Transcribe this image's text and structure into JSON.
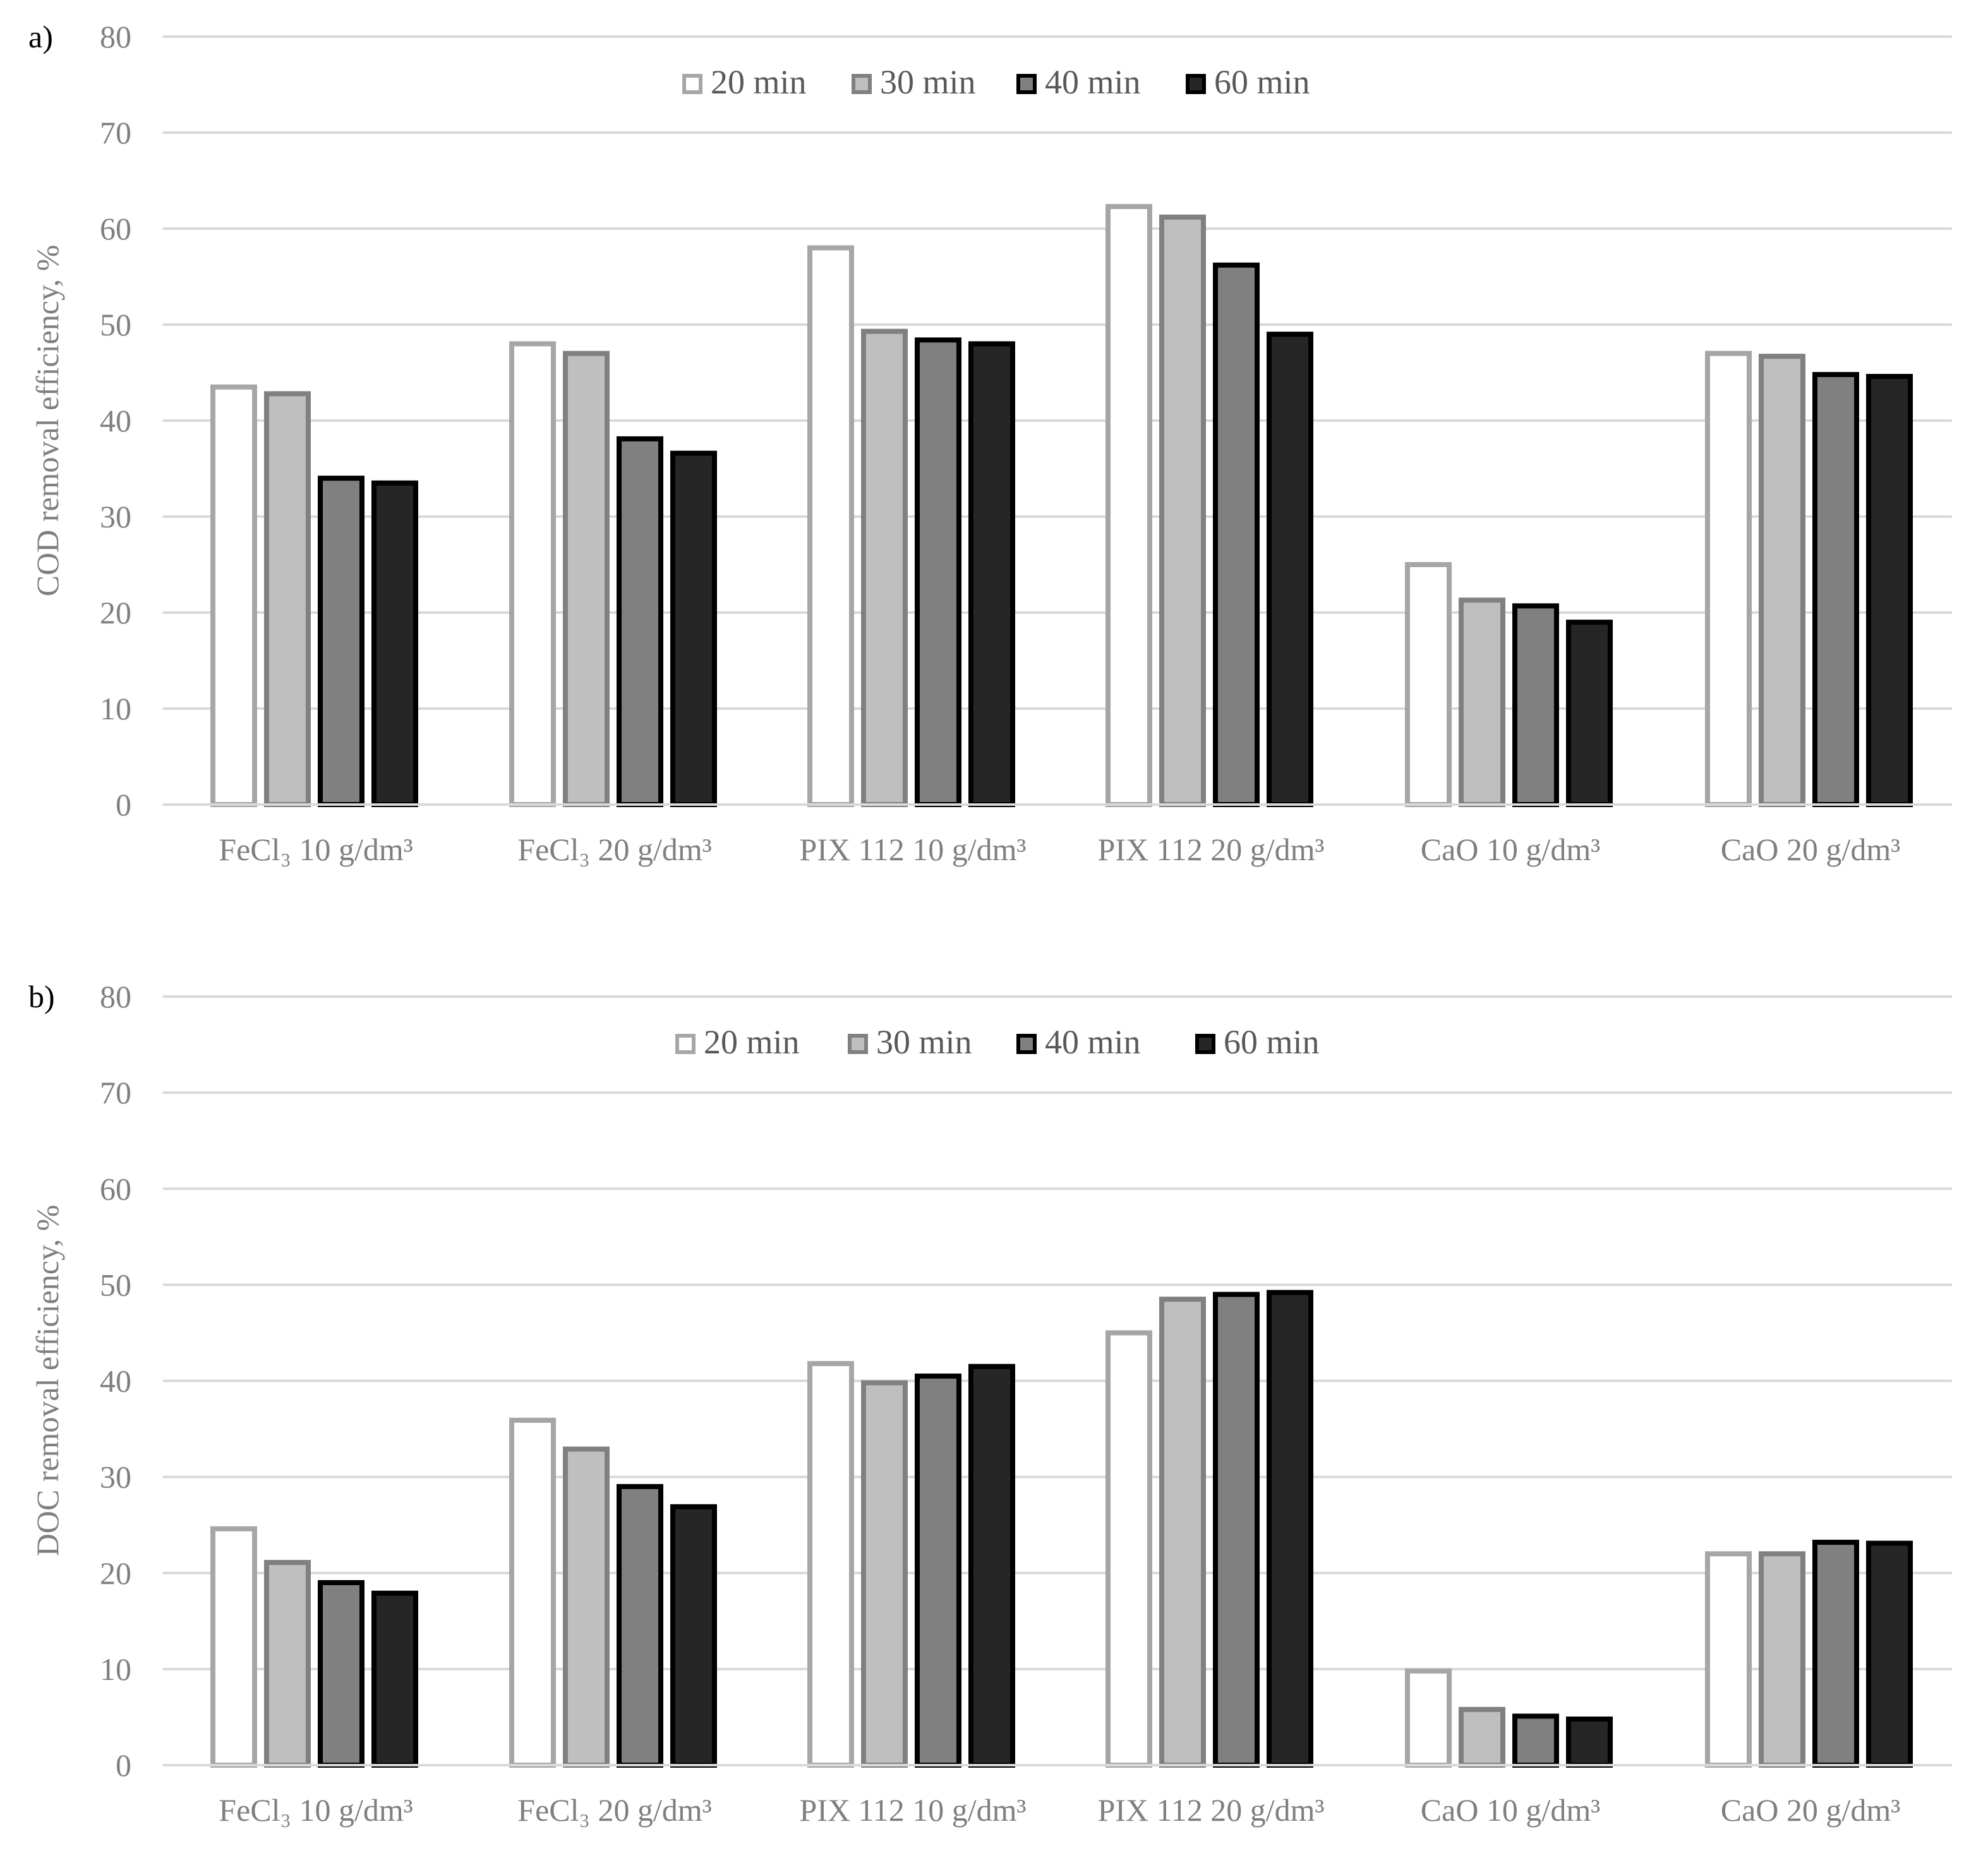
{
  "chart_data": [
    {
      "type": "bar",
      "panel_label": "a)",
      "title": "",
      "xlabel": "",
      "ylabel": "COD removal efficiency, %",
      "ylim": [
        0,
        80
      ],
      "yticks": [
        "0",
        "10",
        "20",
        "30",
        "40",
        "50",
        "60",
        "70",
        "80"
      ],
      "grid": true,
      "legend_position": "top-center",
      "categories": [
        "FeCl₃ 10 g/dm³",
        "FeCl₃ 20 g/dm³",
        "PIX 112 10 g/dm³",
        "PIX 112 20 g/dm³",
        "CaO 10 g/dm³",
        "CaO 20 g/dm³"
      ],
      "series": [
        {
          "name": "20 min",
          "values": [
            43.5,
            48.0,
            58.0,
            62.3,
            25.0,
            47.0
          ]
        },
        {
          "name": "30 min",
          "values": [
            42.8,
            47.0,
            49.3,
            61.2,
            21.3,
            46.7
          ]
        },
        {
          "name": "40 min",
          "values": [
            34.0,
            38.1,
            48.4,
            56.2,
            20.7,
            44.8
          ]
        },
        {
          "name": "60 min",
          "values": [
            33.5,
            36.6,
            48.0,
            49.0,
            19.0,
            44.6
          ]
        }
      ]
    },
    {
      "type": "bar",
      "panel_label": "b)",
      "title": "",
      "xlabel": "",
      "ylabel": "DOC removal efficiency, %",
      "ylim": [
        0,
        80
      ],
      "yticks": [
        "0",
        "10",
        "20",
        "30",
        "40",
        "50",
        "60",
        "70",
        "80"
      ],
      "grid": true,
      "legend_position": "top-center",
      "categories": [
        "FeCl₃ 10 g/dm³",
        "FeCl₃ 20 g/dm³",
        "PIX 112 10 g/dm³",
        "PIX 112 20 g/dm³",
        "CaO 10 g/dm³",
        "CaO 20 g/dm³"
      ],
      "series": [
        {
          "name": "20 min",
          "values": [
            24.6,
            35.9,
            41.8,
            45.0,
            9.8,
            22.0
          ]
        },
        {
          "name": "30 min",
          "values": [
            21.1,
            32.9,
            39.8,
            48.5,
            5.8,
            22.0
          ]
        },
        {
          "name": "40 min",
          "values": [
            19.0,
            29.0,
            40.5,
            49.0,
            5.1,
            23.2
          ]
        },
        {
          "name": "60 min",
          "values": [
            17.9,
            26.9,
            41.5,
            49.2,
            4.8,
            23.1
          ]
        }
      ]
    }
  ],
  "series_style": [
    {
      "fill": "#ffffff",
      "stroke": "#a6a6a6"
    },
    {
      "fill": "#bfbfbf",
      "stroke": "#808080"
    },
    {
      "fill": "#808080",
      "stroke": "#000000"
    },
    {
      "fill": "#262626",
      "stroke": "#000000"
    }
  ]
}
